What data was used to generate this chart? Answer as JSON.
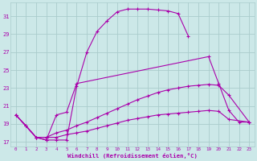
{
  "xlabel": "Windchill (Refroidissement éolien,°C)",
  "bg_color": "#cce8e8",
  "grid_color": "#aacccc",
  "line_color": "#aa00aa",
  "xlim": [
    -0.5,
    23.5
  ],
  "ylim": [
    16.5,
    32.5
  ],
  "yticks": [
    17,
    19,
    21,
    23,
    25,
    27,
    29,
    31
  ],
  "xticks": [
    0,
    1,
    2,
    3,
    4,
    5,
    6,
    7,
    8,
    9,
    10,
    11,
    12,
    13,
    14,
    15,
    16,
    17,
    18,
    19,
    20,
    21,
    22,
    23
  ],
  "series": [
    {
      "x": [
        0,
        1,
        2,
        3,
        4,
        5,
        6,
        7,
        8,
        9,
        10,
        11,
        12,
        13,
        14,
        15,
        16,
        17
      ],
      "y": [
        20.0,
        18.8,
        17.5,
        17.2,
        17.2,
        17.2,
        23.2,
        27.0,
        29.3,
        30.5,
        31.5,
        31.8,
        31.8,
        31.8,
        31.7,
        31.6,
        31.3,
        28.8
      ]
    },
    {
      "x": [
        0,
        1,
        2,
        3,
        4,
        5,
        6,
        19,
        20,
        21,
        22,
        23
      ],
      "y": [
        20.0,
        18.8,
        17.5,
        17.2,
        20.0,
        20.3,
        23.5,
        26.5,
        23.5,
        20.5,
        19.2,
        19.2
      ]
    },
    {
      "x": [
        0,
        2,
        3,
        4,
        5,
        6,
        7,
        8,
        9,
        10,
        11,
        12,
        13,
        14,
        15,
        16,
        17,
        18,
        19,
        20,
        21,
        23
      ],
      "y": [
        20.0,
        17.5,
        17.5,
        18.0,
        18.3,
        18.8,
        19.2,
        19.7,
        20.2,
        20.7,
        21.2,
        21.7,
        22.1,
        22.5,
        22.8,
        23.0,
        23.2,
        23.3,
        23.4,
        23.3,
        22.2,
        19.2
      ]
    },
    {
      "x": [
        0,
        2,
        3,
        4,
        5,
        6,
        7,
        8,
        9,
        10,
        11,
        12,
        13,
        14,
        15,
        16,
        17,
        18,
        19,
        20,
        21,
        23
      ],
      "y": [
        20.0,
        17.5,
        17.5,
        17.5,
        17.8,
        18.0,
        18.2,
        18.5,
        18.8,
        19.1,
        19.4,
        19.6,
        19.8,
        20.0,
        20.1,
        20.2,
        20.3,
        20.4,
        20.5,
        20.4,
        19.5,
        19.2
      ]
    }
  ]
}
